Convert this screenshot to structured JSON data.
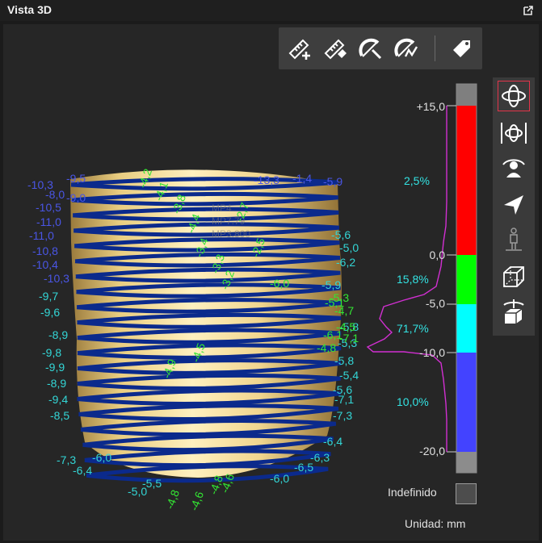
{
  "window": {
    "title": "Vista 3D",
    "popout_icon": "popout-icon"
  },
  "toolbar": [
    {
      "name": "measure-add-button",
      "icon": "ruler-plus-icon"
    },
    {
      "name": "measure-erase-button",
      "icon": "ruler-eraser-icon"
    },
    {
      "name": "angle-measure-button",
      "icon": "protractor-icon"
    },
    {
      "name": "angle-chart-button",
      "icon": "protractor-graph-icon"
    },
    {
      "name": "tag-button",
      "icon": "tag-icon"
    }
  ],
  "sidebar": [
    {
      "name": "orbit-rotate-button",
      "icon": "orbit-icon",
      "active": true
    },
    {
      "name": "pan-horizontal-button",
      "icon": "orbit-horizontal-icon",
      "active": false
    },
    {
      "name": "view-person-button",
      "icon": "person-rotate-icon",
      "active": false
    },
    {
      "name": "send-button",
      "icon": "paper-plane-icon",
      "active": false
    },
    {
      "name": "standing-person-button",
      "icon": "person-standing-icon",
      "active": false
    },
    {
      "name": "cube-view-button",
      "icon": "cube-icon",
      "active": false
    },
    {
      "name": "cube-rotate-button",
      "icon": "cube-rotate-icon",
      "active": false
    }
  ],
  "colorbar": {
    "ticks": [
      "+15,0",
      "0,0",
      "-5,0",
      "-10,0",
      "-20,0"
    ],
    "percentages": [
      "2,5%",
      "15,8%",
      "71,7%",
      "10,0%"
    ],
    "segments": [
      {
        "color": "#7f7f7f",
        "label": "out-of-range-high"
      },
      {
        "color": "#ff0000",
        "from": 15,
        "to": 0
      },
      {
        "color": "#00ff00",
        "from": 0,
        "to": -5
      },
      {
        "color": "#00ffff",
        "from": -5,
        "to": -10
      },
      {
        "color": "#4343ff",
        "from": -10,
        "to": -20
      },
      {
        "color": "#8c8c8c",
        "label": "out-of-range-low"
      }
    ],
    "histogram_color": "#d22fd2",
    "undefined_label": "Indefinido",
    "unit_label": "Unidad: mm"
  },
  "scene": {
    "model": "tooth-crown-scan",
    "ring_color": "#0b2a8c",
    "surface_color": "#e8c977",
    "labels_left_blue": [
      "-10,3",
      "-9,5",
      "-8,0",
      "-9,0",
      "-10,5",
      "-11,0",
      "-11,0",
      "-10,8",
      "-10,4",
      "-10,3"
    ],
    "labels_left_cyan": [
      "-9,7",
      "-9,6",
      "-8,9",
      "-9,8",
      "-9,9",
      "-8,9",
      "-9,4",
      "-8,5",
      "-7,3",
      "-6,4",
      "-5,0",
      "-5,5",
      "-6,0"
    ],
    "labels_center_green": [
      "-4,8",
      "-4,6",
      "-4,8",
      "-4,2",
      "-4,1",
      "-3,8",
      "-4,4",
      "-3,4",
      "-3,3",
      "-3,2",
      "-2,7",
      "-2,5",
      "-4,9",
      "-4,5",
      "-4,6"
    ],
    "labels_right_blue": [
      "-13,3",
      "-1,4",
      "-5,9"
    ],
    "labels_right_cyan": [
      "-6,0",
      "-6,2",
      "-5,0",
      "-5,6",
      "-5,9",
      "-5,8",
      "-5,3",
      "-5,4",
      "-6,5",
      "-6,3",
      "-6,4",
      "-7,3",
      "-7,1",
      "-5,6",
      "-5,8"
    ],
    "labels_right_green": [
      "-6,0",
      "-4,7",
      "-4,5",
      "-5,3",
      "-7,1",
      "-6,1",
      "-5,1",
      "-4,8"
    ],
    "watermark": [
      "MP4",
      "MP7.79",
      "MP3.800"
    ]
  }
}
